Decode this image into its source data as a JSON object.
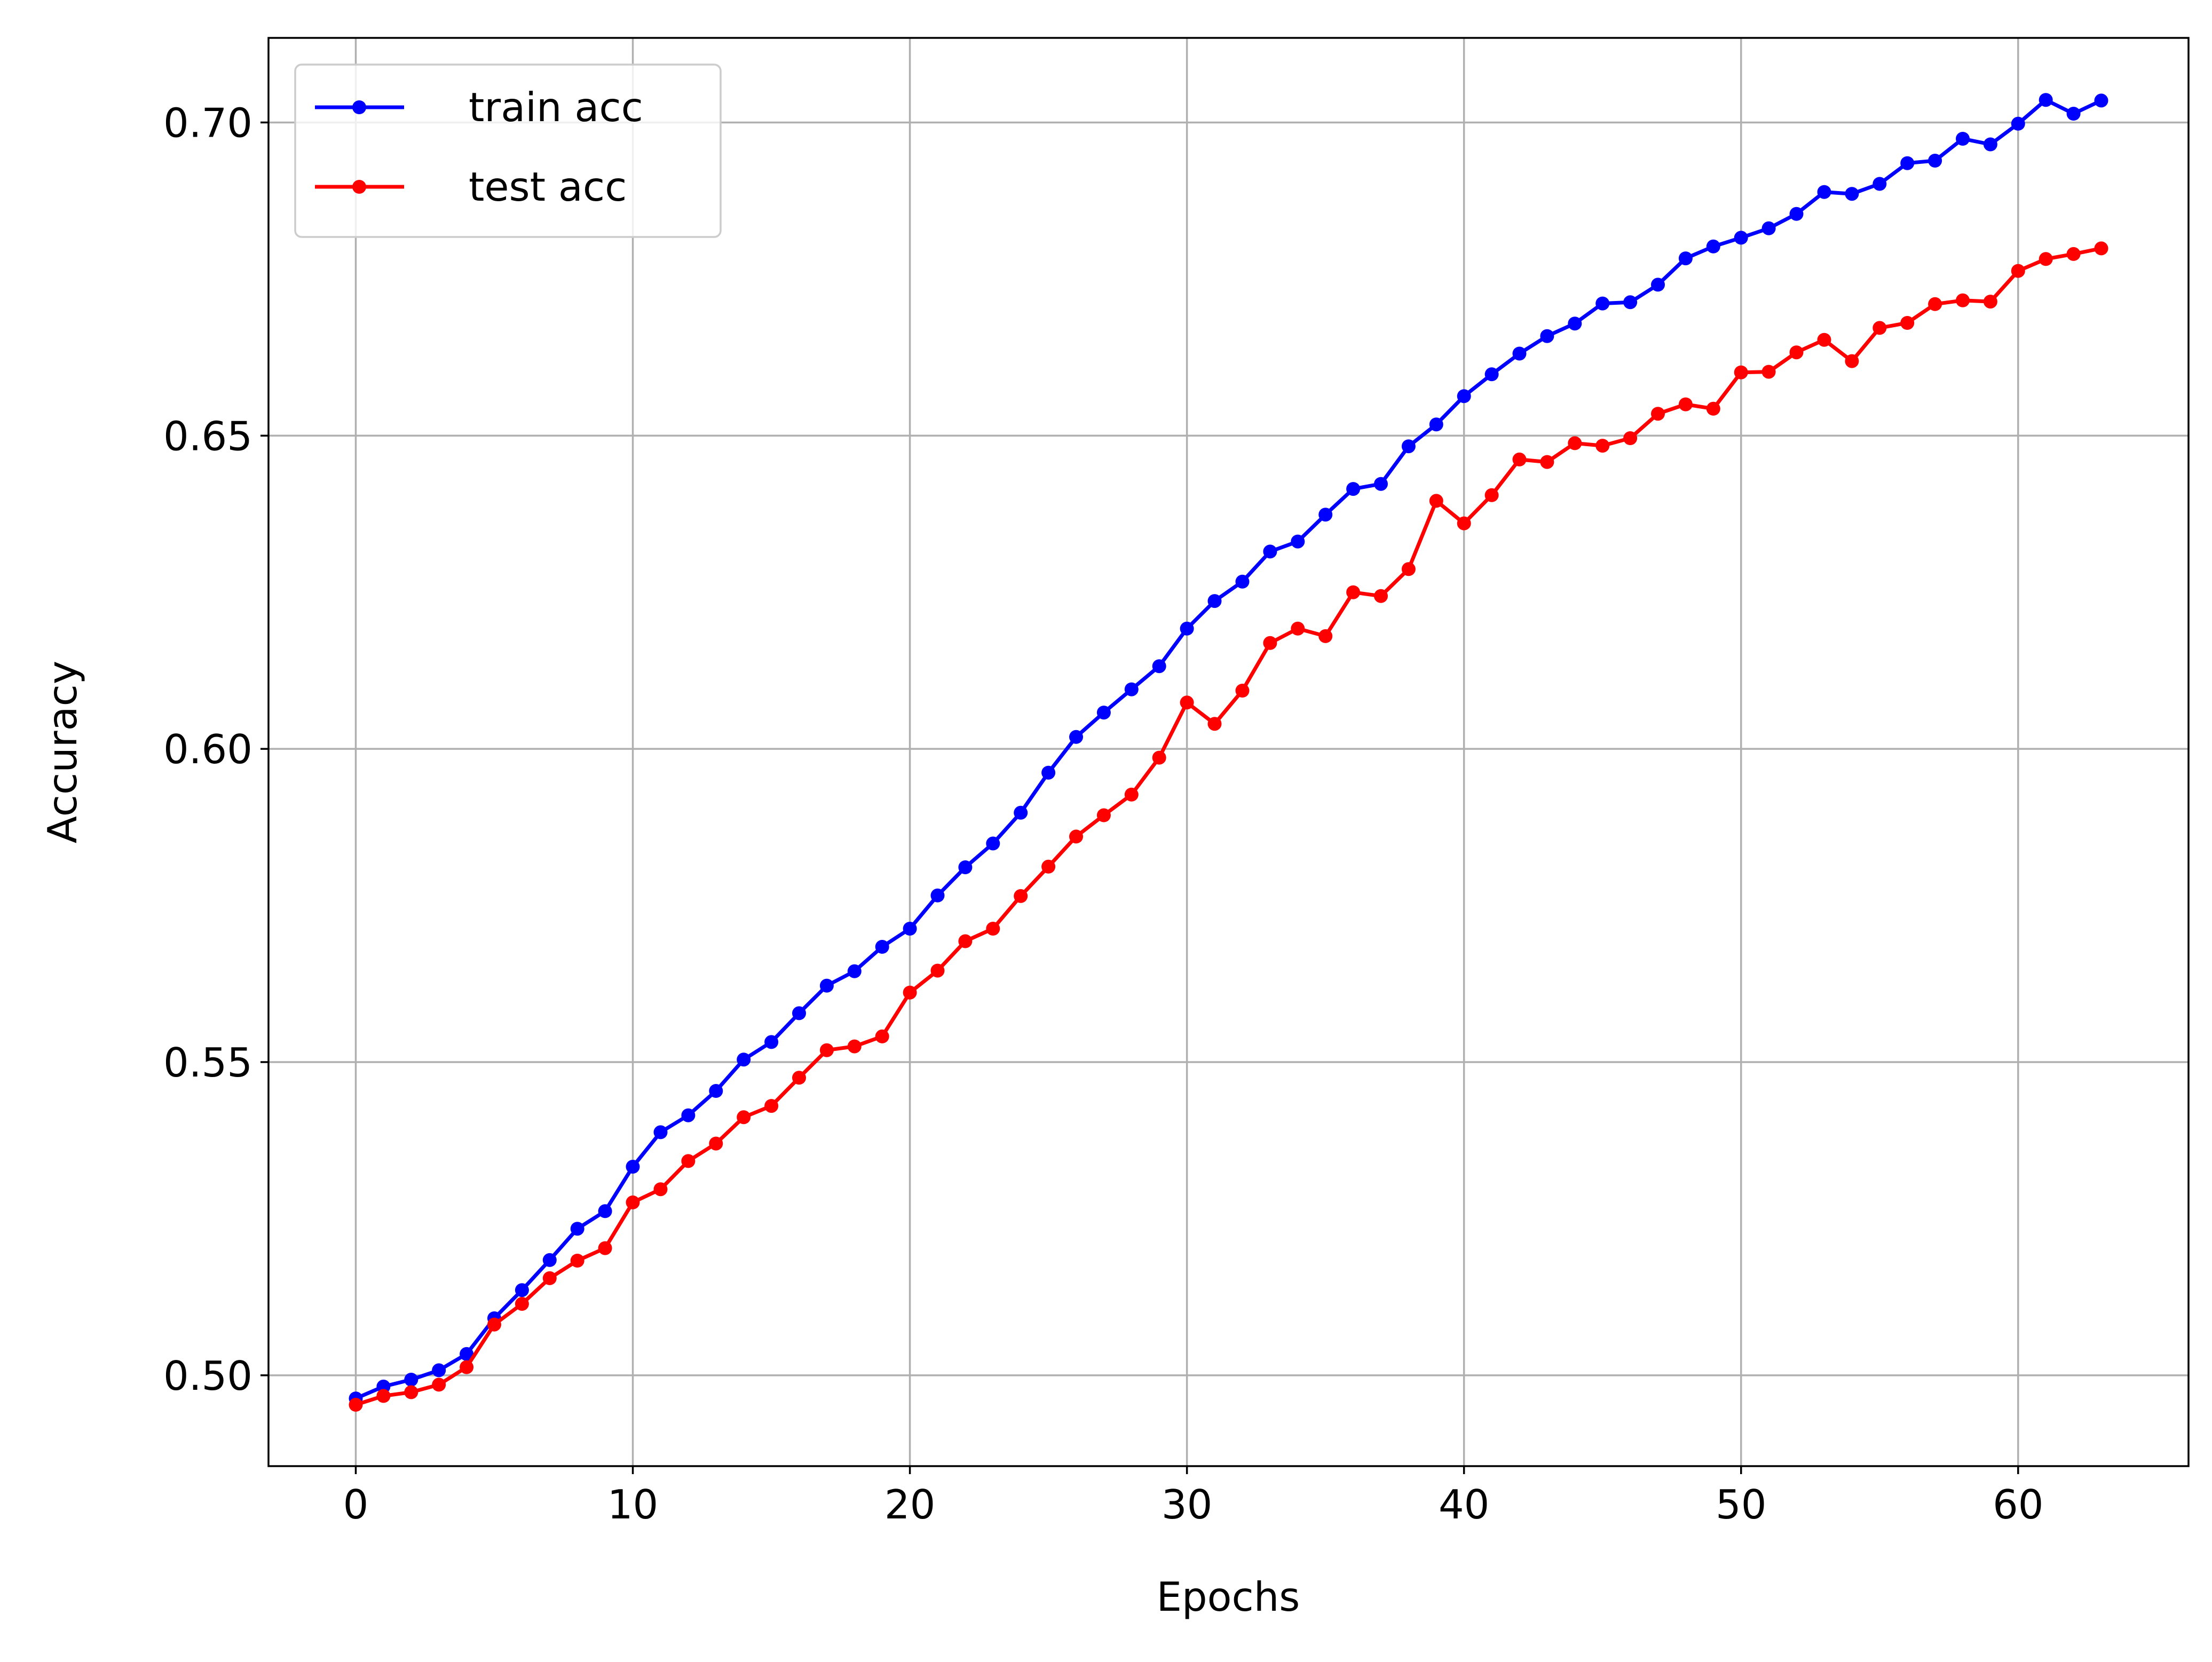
{
  "chart_data": {
    "type": "line",
    "title": "",
    "xlabel": "Epochs",
    "ylabel": "Accuracy",
    "xlim": [
      -3.15,
      66.15
    ],
    "ylim": [
      0.4855,
      0.7135
    ],
    "grid": true,
    "legend_position": "top-left",
    "x_ticks": [
      0,
      10,
      20,
      30,
      40,
      50,
      60
    ],
    "x_tick_labels": [
      "0",
      "10",
      "20",
      "30",
      "40",
      "50",
      "60"
    ],
    "y_ticks": [
      0.5,
      0.55,
      0.6,
      0.65,
      0.7
    ],
    "y_tick_labels": [
      "0.50",
      "0.55",
      "0.60",
      "0.65",
      "0.70"
    ],
    "x": [
      0,
      1,
      2,
      3,
      4,
      5,
      6,
      7,
      8,
      9,
      10,
      11,
      12,
      13,
      14,
      15,
      16,
      17,
      18,
      19,
      20,
      21,
      22,
      23,
      24,
      25,
      26,
      27,
      28,
      29,
      30,
      31,
      32,
      33,
      34,
      35,
      36,
      37,
      38,
      39,
      40,
      41,
      42,
      43,
      44,
      45,
      46,
      47,
      48,
      49,
      50,
      51,
      52,
      53,
      54,
      55,
      56,
      57,
      58,
      59,
      60,
      61,
      62,
      63
    ],
    "series": [
      {
        "name": "train acc",
        "color": "#0000ff",
        "values": [
          0.4963,
          0.4982,
          0.4993,
          0.5008,
          0.5034,
          0.5091,
          0.5136,
          0.5184,
          0.5234,
          0.5262,
          0.5333,
          0.5388,
          0.5415,
          0.5454,
          0.5504,
          0.5532,
          0.5578,
          0.5622,
          0.5645,
          0.5684,
          0.5713,
          0.5766,
          0.5811,
          0.5849,
          0.5898,
          0.5962,
          0.6019,
          0.6058,
          0.6095,
          0.6132,
          0.6192,
          0.6236,
          0.6267,
          0.6315,
          0.6331,
          0.6374,
          0.6415,
          0.6423,
          0.6483,
          0.6518,
          0.6563,
          0.6598,
          0.6631,
          0.6659,
          0.6679,
          0.6711,
          0.6713,
          0.6741,
          0.6783,
          0.6802,
          0.6816,
          0.6831,
          0.6854,
          0.6889,
          0.6886,
          0.6902,
          0.6935,
          0.6939,
          0.6974,
          0.6965,
          0.6998,
          0.7036,
          0.7014,
          0.7035
        ]
      },
      {
        "name": "test acc",
        "color": "#ff0000",
        "values": [
          0.4953,
          0.4967,
          0.4973,
          0.4985,
          0.5013,
          0.5081,
          0.5114,
          0.5155,
          0.5183,
          0.5203,
          0.5276,
          0.5297,
          0.5342,
          0.537,
          0.5412,
          0.543,
          0.5475,
          0.5519,
          0.5525,
          0.5541,
          0.5611,
          0.5646,
          0.5693,
          0.5713,
          0.5765,
          0.5812,
          0.586,
          0.5894,
          0.5927,
          0.5986,
          0.6074,
          0.604,
          0.6093,
          0.6169,
          0.6192,
          0.618,
          0.625,
          0.6244,
          0.6287,
          0.6396,
          0.636,
          0.6405,
          0.6462,
          0.6458,
          0.6488,
          0.6484,
          0.6496,
          0.6535,
          0.655,
          0.6543,
          0.6601,
          0.6602,
          0.6633,
          0.6653,
          0.6619,
          0.6672,
          0.668,
          0.671,
          0.6716,
          0.6714,
          0.6763,
          0.6782,
          0.679,
          0.6799
        ]
      }
    ]
  }
}
